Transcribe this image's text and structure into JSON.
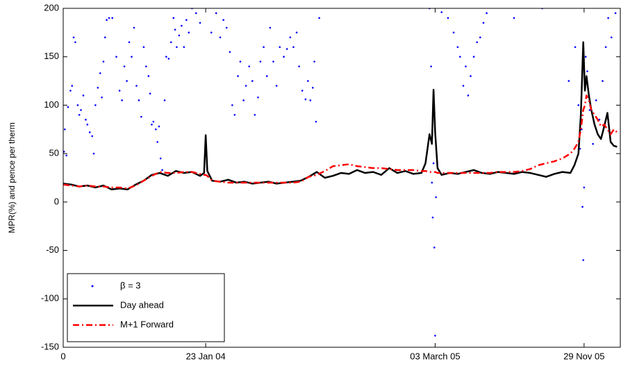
{
  "chart_data": {
    "type": "line",
    "ylabel": "MPR(%)  and pence per therm",
    "xlim": [
      0,
      692
    ],
    "ylim": [
      -150,
      200
    ],
    "xticks": [
      0,
      {
        "value": 177,
        "label": "23 Jan 04"
      },
      {
        "value": 462,
        "label": "03 March 05"
      },
      {
        "value": 647,
        "label": "29 Nov 05"
      }
    ],
    "yticks": [
      -150,
      -100,
      -50,
      0,
      50,
      100,
      150,
      200
    ],
    "legend": "lower left",
    "series": [
      {
        "name": "β = 3",
        "color": "#0000ff",
        "mode": "markers",
        "x": [
          1,
          2,
          4,
          6,
          9,
          11,
          13,
          15,
          18,
          20,
          22,
          25,
          28,
          30,
          33,
          36,
          38,
          40,
          43,
          46,
          48,
          50,
          52,
          54,
          57,
          61,
          66,
          70,
          73,
          76,
          79,
          82,
          85,
          88,
          91,
          94,
          97,
          100,
          103,
          106,
          108,
          110,
          112,
          115,
          117,
          119,
          121,
          123,
          126,
          128,
          131,
          134,
          137,
          139,
          141,
          144,
          147,
          150,
          153,
          156,
          160,
          165,
          170,
          184,
          190,
          195,
          199,
          203,
          207,
          210,
          213,
          217,
          220,
          224,
          227,
          231,
          235,
          238,
          242,
          245,
          249,
          253,
          257,
          261,
          265,
          269,
          274,
          278,
          282,
          286,
          290,
          293,
          297,
          301,
          304,
          307,
          310,
          312,
          314,
          318,
          455,
          457,
          458,
          459,
          460,
          461,
          462,
          463,
          470,
          478,
          485,
          490,
          493,
          497,
          500,
          503,
          506,
          510,
          514,
          518,
          522,
          526,
          560,
          595,
          628,
          636,
          640,
          642,
          644,
          645,
          646,
          647,
          649,
          651,
          654,
          658,
          662,
          666,
          670,
          674,
          677,
          681,
          686
        ],
        "values": [
          52,
          75,
          48,
          98,
          115,
          120,
          170,
          165,
          100,
          90,
          95,
          110,
          85,
          80,
          72,
          68,
          50,
          100,
          118,
          133,
          108,
          145,
          170,
          188,
          190,
          190,
          150,
          115,
          105,
          140,
          125,
          165,
          150,
          180,
          120,
          105,
          88,
          160,
          140,
          130,
          112,
          80,
          83,
          75,
          62,
          78,
          45,
          33,
          105,
          150,
          148,
          165,
          190,
          178,
          160,
          172,
          182,
          160,
          188,
          175,
          200,
          195,
          185,
          175,
          195,
          170,
          188,
          180,
          155,
          100,
          90,
          130,
          145,
          105,
          120,
          140,
          125,
          90,
          108,
          145,
          160,
          130,
          180,
          145,
          120,
          160,
          150,
          158,
          170,
          160,
          175,
          140,
          115,
          106,
          125,
          105,
          118,
          145,
          83,
          190,
          200,
          140,
          20,
          -16,
          40,
          -47,
          -138,
          5,
          196,
          190,
          175,
          160,
          150,
          120,
          140,
          110,
          130,
          150,
          165,
          170,
          185,
          195,
          190,
          200,
          125,
          160,
          100,
          55,
          75,
          -5,
          -60,
          15,
          150,
          135,
          95,
          60,
          105,
          85,
          125,
          160,
          190,
          170,
          195
        ]
      },
      {
        "name": "Day ahead",
        "color": "#000000",
        "mode": "solid",
        "x": [
          0,
          10,
          20,
          30,
          40,
          50,
          60,
          70,
          80,
          90,
          100,
          110,
          120,
          130,
          140,
          150,
          160,
          170,
          175,
          177,
          179,
          185,
          195,
          205,
          215,
          225,
          235,
          245,
          255,
          265,
          275,
          285,
          295,
          305,
          315,
          325,
          335,
          345,
          355,
          365,
          375,
          385,
          395,
          405,
          415,
          425,
          435,
          445,
          450,
          455,
          458,
          460,
          462,
          465,
          470,
          480,
          490,
          500,
          510,
          520,
          530,
          540,
          550,
          560,
          570,
          580,
          590,
          600,
          610,
          620,
          630,
          635,
          640,
          643,
          646,
          648,
          650,
          653,
          656,
          660,
          664,
          668,
          672,
          676,
          680,
          684,
          688
        ],
        "values": [
          19,
          18,
          16,
          17,
          15,
          17,
          13,
          14,
          13,
          18,
          22,
          28,
          30,
          27,
          32,
          30,
          31,
          27,
          30,
          69,
          32,
          22,
          21,
          23,
          20,
          21,
          19,
          20,
          21,
          19,
          20,
          21,
          22,
          26,
          31,
          25,
          27,
          30,
          29,
          33,
          30,
          31,
          28,
          35,
          30,
          32,
          29,
          30,
          40,
          70,
          60,
          116,
          72,
          35,
          28,
          30,
          29,
          31,
          33,
          30,
          29,
          31,
          30,
          29,
          31,
          30,
          28,
          26,
          29,
          31,
          30,
          38,
          50,
          90,
          165,
          115,
          130,
          110,
          95,
          80,
          70,
          65,
          78,
          92,
          62,
          58,
          57
        ]
      },
      {
        "name": "M+1 Forward",
        "color": "#ff0000",
        "mode": "dashdot",
        "x": [
          0,
          10,
          20,
          30,
          40,
          50,
          60,
          70,
          80,
          90,
          100,
          110,
          120,
          130,
          140,
          150,
          160,
          170,
          175,
          177,
          179,
          185,
          195,
          205,
          215,
          225,
          235,
          245,
          255,
          265,
          275,
          285,
          295,
          305,
          315,
          325,
          335,
          345,
          355,
          365,
          375,
          385,
          395,
          405,
          415,
          425,
          435,
          445,
          450,
          455,
          458,
          460,
          462,
          465,
          470,
          480,
          490,
          500,
          510,
          520,
          530,
          540,
          550,
          560,
          570,
          580,
          590,
          600,
          610,
          620,
          630,
          635,
          640,
          643,
          646,
          648,
          650,
          653,
          656,
          660,
          664,
          668,
          672,
          676,
          680,
          684,
          688
        ],
        "values": [
          18,
          17,
          16,
          17,
          16,
          16,
          15,
          15,
          14,
          17,
          22,
          27,
          31,
          30,
          30,
          31,
          31,
          29,
          28,
          28,
          27,
          22,
          21,
          20,
          20,
          20,
          20,
          20,
          20,
          20,
          20,
          20,
          21,
          26,
          28,
          32,
          37,
          38,
          39,
          37,
          36,
          35,
          35,
          34,
          33,
          33,
          33,
          32,
          32,
          31,
          31,
          31,
          31,
          30,
          30,
          30,
          30,
          30,
          30,
          30,
          30,
          31,
          31,
          31,
          32,
          34,
          38,
          40,
          42,
          45,
          50,
          55,
          62,
          75,
          95,
          100,
          110,
          105,
          95,
          90,
          85,
          78,
          80,
          75,
          70,
          75,
          72
        ]
      }
    ]
  }
}
